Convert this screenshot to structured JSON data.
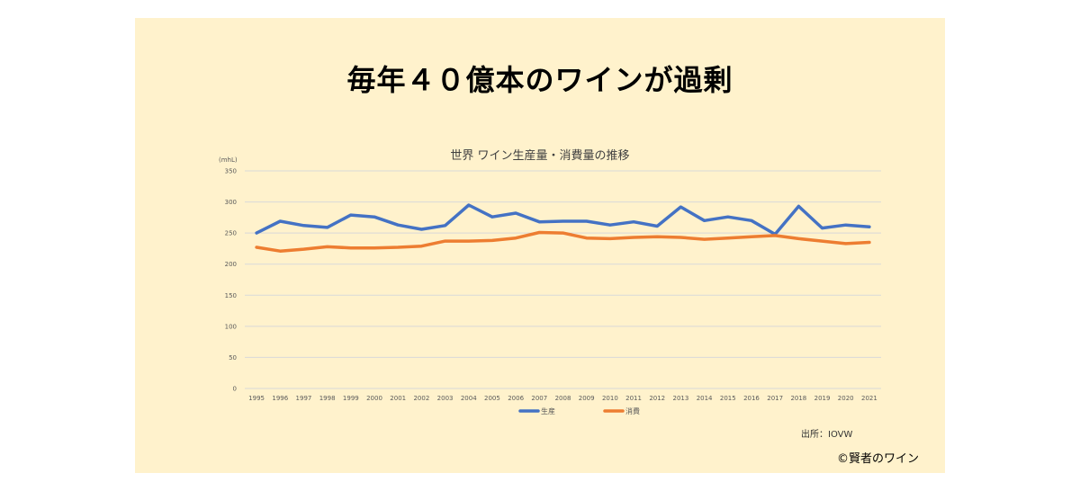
{
  "main_title": "毎年４０億本のワインが過剰",
  "source": "出所：IOVW",
  "copyright": "©賢者のワイン",
  "colors": {
    "production": "#4472c4",
    "consumption": "#ed7d31",
    "background": "#fff2cc"
  },
  "chart_data": {
    "type": "line",
    "title": "世界 ワイン生産量・消費量の推移",
    "unit_label": "(mhL)",
    "ylim": [
      0,
      350
    ],
    "yticks": [
      0,
      50,
      100,
      150,
      200,
      250,
      300,
      350
    ],
    "grid": true,
    "legend_position": "bottom",
    "categories": [
      "1995",
      "1996",
      "1997",
      "1998",
      "1999",
      "2000",
      "2001",
      "2002",
      "2003",
      "2004",
      "2005",
      "2006",
      "2007",
      "2008",
      "2009",
      "2010",
      "2011",
      "2012",
      "2013",
      "2014",
      "2015",
      "2016",
      "2017",
      "2018",
      "2019",
      "2020",
      "2021"
    ],
    "series": [
      {
        "name": "生産",
        "color": "#4472c4",
        "values": [
          250,
          269,
          262,
          259,
          279,
          276,
          263,
          256,
          262,
          295,
          276,
          282,
          268,
          269,
          269,
          263,
          268,
          261,
          292,
          270,
          276,
          270,
          248,
          293,
          258,
          263,
          260
        ]
      },
      {
        "name": "消費",
        "color": "#ed7d31",
        "values": [
          227,
          221,
          224,
          228,
          226,
          226,
          227,
          229,
          237,
          237,
          238,
          242,
          251,
          250,
          242,
          241,
          243,
          244,
          243,
          240,
          242,
          244,
          246,
          241,
          237,
          233,
          235
        ]
      }
    ]
  }
}
